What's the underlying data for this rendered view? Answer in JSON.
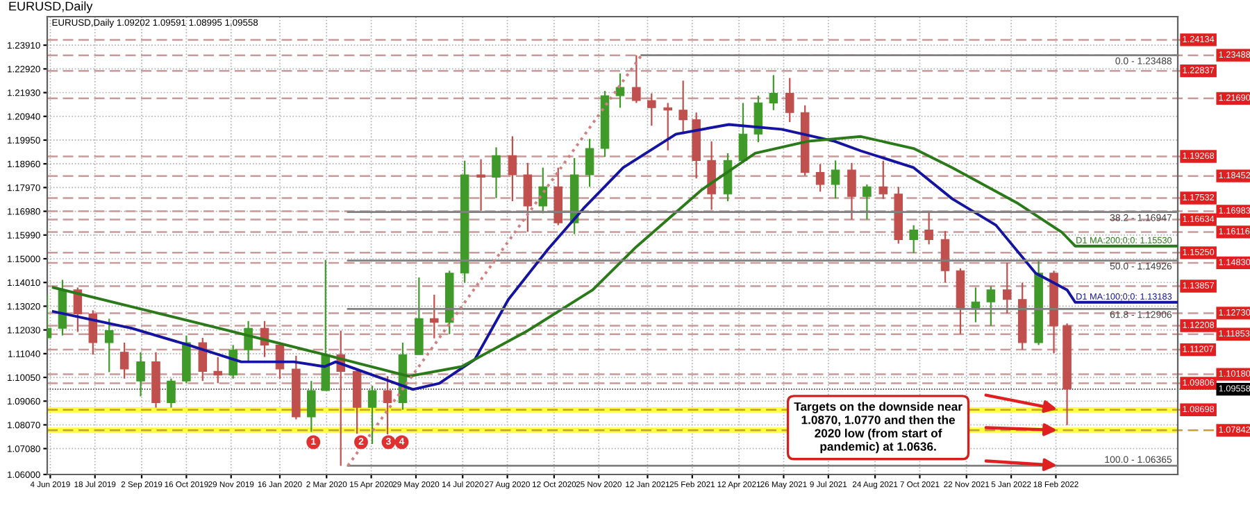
{
  "chart_data": {
    "type": "candlestick",
    "title": "EURUSD,Daily",
    "subtitle": "EURUSD,Daily 1.09202 1.09591 1.08995 1.09558",
    "x": [
      "2019-06-01",
      "2019-06-16",
      "2019-07-01",
      "2019-07-16",
      "2019-08-01",
      "2019-08-16",
      "2019-09-01",
      "2019-09-16",
      "2019-10-01",
      "2019-10-16",
      "2019-11-01",
      "2019-11-16",
      "2019-12-01",
      "2019-12-16",
      "2020-01-01",
      "2020-01-16",
      "2020-02-01",
      "2020-02-16",
      "2020-03-01",
      "2020-03-16",
      "2020-04-01",
      "2020-04-16",
      "2020-05-01",
      "2020-05-16",
      "2020-06-01",
      "2020-06-16",
      "2020-07-01",
      "2020-07-16",
      "2020-08-01",
      "2020-08-16",
      "2020-09-01",
      "2020-09-16",
      "2020-10-01",
      "2020-10-16",
      "2020-11-01",
      "2020-11-16",
      "2020-12-01",
      "2020-12-16",
      "2021-01-01",
      "2021-01-16",
      "2021-02-01",
      "2021-02-16",
      "2021-03-01",
      "2021-03-16",
      "2021-04-01",
      "2021-04-16",
      "2021-05-01",
      "2021-05-16",
      "2021-06-01",
      "2021-06-16",
      "2021-07-01",
      "2021-07-16",
      "2021-08-01",
      "2021-08-16",
      "2021-09-01",
      "2021-09-16",
      "2021-10-01",
      "2021-10-16",
      "2021-11-01",
      "2021-11-16",
      "2021-12-01",
      "2021-12-16",
      "2022-01-01",
      "2022-01-16",
      "2022-02-01",
      "2022-02-16",
      "2022-03-01"
    ],
    "ohlc": [
      [
        1.117,
        1.1348,
        1.116,
        1.121
      ],
      [
        1.121,
        1.1412,
        1.118,
        1.137
      ],
      [
        1.137,
        1.138,
        1.1195,
        1.127
      ],
      [
        1.127,
        1.1285,
        1.11,
        1.115
      ],
      [
        1.115,
        1.125,
        1.1027,
        1.12
      ],
      [
        1.111,
        1.115,
        1.1,
        1.104
      ],
      [
        1.099,
        1.111,
        1.0926,
        1.107
      ],
      [
        1.107,
        1.111,
        1.0879,
        1.09
      ],
      [
        1.09,
        1.1,
        1.0879,
        1.099
      ],
      [
        1.099,
        1.1179,
        1.098,
        1.115
      ],
      [
        1.115,
        1.117,
        1.099,
        1.103
      ],
      [
        1.103,
        1.109,
        1.0981,
        1.1015
      ],
      [
        1.1015,
        1.114,
        1.1,
        1.112
      ],
      [
        1.112,
        1.124,
        1.107,
        1.121
      ],
      [
        1.121,
        1.124,
        1.109,
        1.114
      ],
      [
        1.114,
        1.115,
        1.1,
        1.104
      ],
      [
        1.104,
        1.1095,
        1.083,
        1.084
      ],
      [
        1.084,
        1.099,
        1.0778,
        1.095
      ],
      [
        1.095,
        1.1495,
        1.095,
        1.11
      ],
      [
        1.11,
        1.12,
        1.0636,
        1.103
      ],
      [
        1.103,
        1.104,
        1.077,
        1.088
      ],
      [
        1.088,
        1.097,
        1.0727,
        1.095
      ],
      [
        1.095,
        1.101,
        1.0767,
        1.09
      ],
      [
        1.09,
        1.115,
        1.087,
        1.11
      ],
      [
        1.11,
        1.1422,
        1.11,
        1.125
      ],
      [
        1.125,
        1.135,
        1.1168,
        1.1235
      ],
      [
        1.1235,
        1.145,
        1.1185,
        1.144
      ],
      [
        1.144,
        1.1909,
        1.14,
        1.185
      ],
      [
        1.185,
        1.1915,
        1.17,
        1.184
      ],
      [
        1.184,
        1.1965,
        1.1753,
        1.193
      ],
      [
        1.193,
        1.2011,
        1.174,
        1.185
      ],
      [
        1.185,
        1.19,
        1.1612,
        1.172
      ],
      [
        1.172,
        1.188,
        1.169,
        1.18
      ],
      [
        1.18,
        1.188,
        1.164,
        1.165
      ],
      [
        1.165,
        1.192,
        1.1603,
        1.185
      ],
      [
        1.185,
        1.2,
        1.18,
        1.196
      ],
      [
        1.196,
        1.22,
        1.1925,
        1.218
      ],
      [
        1.218,
        1.2273,
        1.213,
        1.2215
      ],
      [
        1.2215,
        1.2349,
        1.215,
        1.216
      ],
      [
        1.216,
        1.219,
        1.2055,
        1.213
      ],
      [
        1.213,
        1.215,
        1.1952,
        1.212
      ],
      [
        1.212,
        1.2243,
        1.202,
        1.208
      ],
      [
        1.208,
        1.211,
        1.1835,
        1.191
      ],
      [
        1.191,
        1.199,
        1.1704,
        1.177
      ],
      [
        1.177,
        1.194,
        1.174,
        1.191
      ],
      [
        1.191,
        1.215,
        1.19,
        1.202
      ],
      [
        1.202,
        1.218,
        1.1986,
        1.215
      ],
      [
        1.215,
        1.2266,
        1.212,
        1.219
      ],
      [
        1.219,
        1.2254,
        1.207,
        1.211
      ],
      [
        1.211,
        1.214,
        1.1847,
        1.186
      ],
      [
        1.186,
        1.1895,
        1.178,
        1.181
      ],
      [
        1.181,
        1.191,
        1.1752,
        1.187
      ],
      [
        1.187,
        1.19,
        1.1664,
        1.176
      ],
      [
        1.176,
        1.181,
        1.1664,
        1.18
      ],
      [
        1.18,
        1.1909,
        1.175,
        1.177
      ],
      [
        1.177,
        1.18,
        1.1563,
        1.158
      ],
      [
        1.158,
        1.164,
        1.1524,
        1.162
      ],
      [
        1.162,
        1.1692,
        1.156,
        1.158
      ],
      [
        1.158,
        1.1616,
        1.14,
        1.145
      ],
      [
        1.145,
        1.146,
        1.1186,
        1.129
      ],
      [
        1.129,
        1.138,
        1.1235,
        1.132
      ],
      [
        1.132,
        1.1385,
        1.122,
        1.137
      ],
      [
        1.137,
        1.1483,
        1.1272,
        1.133
      ],
      [
        1.133,
        1.14,
        1.1121,
        1.115
      ],
      [
        1.115,
        1.1495,
        1.114,
        1.144
      ],
      [
        1.144,
        1.145,
        1.1106,
        1.122
      ],
      [
        1.122,
        1.123,
        1.0806,
        1.0956
      ]
    ],
    "series": [
      {
        "type": "line",
        "name": "D1 MA:100;0;0: 1.13183",
        "color": "#1414a0",
        "x": [
          "2019-06-07",
          "2019-08-23",
          "2019-10-18",
          "2019-12-09",
          "2020-01-30",
          "2020-02-29",
          "2020-03-11",
          "2020-04-13",
          "2020-05-26",
          "2020-06-21",
          "2020-07-26",
          "2020-08-28",
          "2020-10-06",
          "2020-11-10",
          "2020-12-19",
          "2021-02-09",
          "2021-04-02",
          "2021-05-24",
          "2021-07-15",
          "2021-08-10",
          "2021-10-01",
          "2021-11-08",
          "2021-12-21",
          "2022-01-29",
          "2022-03-01",
          "2022-03-09",
          "2022-06-18"
        ],
        "values": [
          1.128,
          1.121,
          1.114,
          1.107,
          1.107,
          1.105,
          1.107,
          1.102,
          1.0955,
          1.098,
          1.108,
          1.133,
          1.154,
          1.171,
          1.188,
          1.202,
          1.206,
          1.204,
          1.199,
          1.195,
          1.188,
          1.175,
          1.164,
          1.144,
          1.137,
          1.13183,
          1.13183
        ]
      },
      {
        "type": "line",
        "name": "D1 MA:200;0;0: 1.15530",
        "color": "#2a7a1a",
        "x": [
          "2019-06-07",
          "2019-08-23",
          "2019-11-17",
          "2020-02-29",
          "2020-05-22",
          "2020-07-13",
          "2020-09-16",
          "2020-11-19",
          "2021-01-01",
          "2021-03-07",
          "2021-04-28",
          "2021-06-19",
          "2021-08-10",
          "2021-10-01",
          "2021-11-08",
          "2022-01-12",
          "2022-02-24",
          "2022-03-09",
          "2022-06-18"
        ],
        "values": [
          1.138,
          1.13,
          1.121,
          1.11,
          1.101,
          1.105,
          1.12,
          1.137,
          1.155,
          1.179,
          1.194,
          1.199,
          1.201,
          1.196,
          1.188,
          1.173,
          1.161,
          1.1553,
          1.1553
        ]
      },
      {
        "type": "line",
        "name": "0.0 - 1.23488",
        "color": "#808080",
        "x": [
          "2021-01-06",
          "2022-06-18"
        ],
        "values": [
          1.23488,
          1.23488
        ]
      },
      {
        "type": "line",
        "name": "38.2 - 1.16947",
        "color": "#808080",
        "x": [
          "2020-03-23",
          "2022-06-18"
        ],
        "values": [
          1.16947,
          1.16947
        ]
      },
      {
        "type": "line",
        "name": "50.0 - 1.14926",
        "color": "#808080",
        "x": [
          "2020-03-23",
          "2022-06-18"
        ],
        "values": [
          1.14926,
          1.14926
        ]
      },
      {
        "type": "line",
        "name": "61.8 - 1.12906",
        "color": "#808080",
        "x": [
          "2020-03-23",
          "2022-06-18"
        ],
        "values": [
          1.12906,
          1.12906
        ]
      },
      {
        "type": "line",
        "name": "100.0 - 1.06365",
        "color": "#808080",
        "x": [
          "2020-03-23",
          "2022-06-18"
        ],
        "values": [
          1.06365,
          1.06365
        ]
      },
      {
        "type": "line",
        "color": "#d08080",
        "line_style": "dotted",
        "x": [
          "2020-03-23",
          "2021-01-06"
        ],
        "values": [
          1.06365,
          1.23488
        ]
      }
    ],
    "xlim": [
      "2019-06-01",
      "2022-06-18"
    ],
    "xticks": [
      {
        "value": "2019-06-04",
        "label": "4 Jun 2019"
      },
      {
        "value": "2019-07-18",
        "label": "18 Jul 2019"
      },
      {
        "value": "2019-09-02",
        "label": "2 Sep 2019"
      },
      {
        "value": "2019-10-16",
        "label": "16 Oct 2019"
      },
      {
        "value": "2019-11-29",
        "label": "29 Nov 2019"
      },
      {
        "value": "2020-01-16",
        "label": "16 Jan 2020"
      },
      {
        "value": "2020-03-02",
        "label": "2 Mar 2020"
      },
      {
        "value": "2020-04-15",
        "label": "15 Apr 2020"
      },
      {
        "value": "2020-05-29",
        "label": "29 May 2020"
      },
      {
        "value": "2020-07-14",
        "label": "14 Jul 2020"
      },
      {
        "value": "2020-08-27",
        "label": "27 Aug 2020"
      },
      {
        "value": "2020-10-12",
        "label": "12 Oct 2020"
      },
      {
        "value": "2020-11-25",
        "label": "25 Nov 2020"
      },
      {
        "value": "2021-01-12",
        "label": "12 Jan 2021"
      },
      {
        "value": "2021-02-25",
        "label": "25 Feb 2021"
      },
      {
        "value": "2021-04-12",
        "label": "12 Apr 2021"
      },
      {
        "value": "2021-05-26",
        "label": "26 May 2021"
      },
      {
        "value": "2021-07-09",
        "label": "9 Jul 2021"
      },
      {
        "value": "2021-08-24",
        "label": "24 Aug 2021"
      },
      {
        "value": "2021-10-07",
        "label": "7 Oct 2021"
      },
      {
        "value": "2021-11-22",
        "label": "22 Nov 2021"
      },
      {
        "value": "2022-01-05",
        "label": "5 Jan 2022"
      },
      {
        "value": "2022-02-18",
        "label": "18 Feb 2022"
      }
    ],
    "ylim": [
      1.06,
      1.251
    ],
    "yticks": [
      {
        "value": 1.06,
        "label": "1.06000"
      },
      {
        "value": 1.0708,
        "label": "1.07080"
      },
      {
        "value": 1.0807,
        "label": "1.08070"
      },
      {
        "value": 1.0906,
        "label": "1.09060"
      },
      {
        "value": 1.1005,
        "label": "1.10050"
      },
      {
        "value": 1.1104,
        "label": "1.11040"
      },
      {
        "value": 1.1203,
        "label": "1.12030"
      },
      {
        "value": 1.1302,
        "label": "1.13020"
      },
      {
        "value": 1.1401,
        "label": "1.14010"
      },
      {
        "value": 1.15,
        "label": "1.15000"
      },
      {
        "value": 1.1599,
        "label": "1.15990"
      },
      {
        "value": 1.1698,
        "label": "1.16980"
      },
      {
        "value": 1.1797,
        "label": "1.17970"
      },
      {
        "value": 1.1896,
        "label": "1.18960"
      },
      {
        "value": 1.1995,
        "label": "1.19950"
      },
      {
        "value": 1.2094,
        "label": "1.20940"
      },
      {
        "value": 1.2193,
        "label": "1.21930"
      },
      {
        "value": 1.2292,
        "label": "1.22920"
      },
      {
        "value": 1.2391,
        "label": "1.23910"
      }
    ],
    "grid": true,
    "bands": [
      {
        "axis": "y",
        "from": 1.0858,
        "to": 1.0881,
        "color": "#ffff40"
      },
      {
        "axis": "y",
        "from": 1.0773,
        "to": 1.0796,
        "color": "#ffff40"
      }
    ],
    "ref_lines": [
      {
        "axis": "y",
        "value": 1.24134,
        "label": "1.24134",
        "color": "#c89a9a",
        "line_style": "dashed"
      },
      {
        "axis": "y",
        "value": 1.23488,
        "label": "1.23488",
        "color": "#c89a9a",
        "line_style": "dashed"
      },
      {
        "axis": "y",
        "value": 1.22837,
        "label": "1.22837",
        "color": "#c89a9a",
        "line_style": "dashed"
      },
      {
        "axis": "y",
        "value": 1.2169,
        "label": "1.21690",
        "color": "#c89a9a",
        "line_style": "dashed"
      },
      {
        "axis": "y",
        "value": 1.19268,
        "label": "1.19268",
        "color": "#c89a9a",
        "line_style": "dashed"
      },
      {
        "axis": "y",
        "value": 1.18452,
        "label": "1.18452",
        "color": "#c89a9a",
        "line_style": "dashed"
      },
      {
        "axis": "y",
        "value": 1.17532,
        "label": "1.17532",
        "color": "#c89a9a",
        "line_style": "dashed"
      },
      {
        "axis": "y",
        "value": 1.16983,
        "label": "1.16983",
        "color": "#c89a9a",
        "line_style": "dashed"
      },
      {
        "axis": "y",
        "value": 1.16634,
        "label": "1.16634",
        "color": "#c89a9a",
        "line_style": "dashed"
      },
      {
        "axis": "y",
        "value": 1.16116,
        "label": "1.16116",
        "color": "#c89a9a",
        "line_style": "dashed"
      },
      {
        "axis": "y",
        "value": 1.1525,
        "label": "1.15250",
        "color": "#c89a9a",
        "line_style": "dashed"
      },
      {
        "axis": "y",
        "value": 1.1483,
        "label": "1.14830",
        "color": "#c89a9a",
        "line_style": "dashed"
      },
      {
        "axis": "y",
        "value": 1.13857,
        "label": "1.13857",
        "color": "#c89a9a",
        "line_style": "dashed"
      },
      {
        "axis": "y",
        "value": 1.1273,
        "label": "1.12730",
        "color": "#c89a9a",
        "line_style": "dashed"
      },
      {
        "axis": "y",
        "value": 1.12208,
        "label": "1.12208",
        "color": "#c89a9a",
        "line_style": "dashed"
      },
      {
        "axis": "y",
        "value": 1.11853,
        "label": "1.11853",
        "color": "#c89a9a",
        "line_style": "dashed"
      },
      {
        "axis": "y",
        "value": 1.11207,
        "label": "1.11207",
        "color": "#c89a9a",
        "line_style": "dashed"
      },
      {
        "axis": "y",
        "value": 1.1018,
        "label": "1.10180",
        "color": "#c89a9a",
        "line_style": "dashed"
      },
      {
        "axis": "y",
        "value": 1.09806,
        "label": "1.09806",
        "color": "#c89a9a",
        "line_style": "dashed"
      },
      {
        "axis": "y",
        "value": 1.09558,
        "label": "1.09558",
        "color": "#000000",
        "line_style": "dotted"
      },
      {
        "axis": "y",
        "value": 1.08698,
        "label": "1.08698",
        "color": "#c8a030",
        "line_style": "dashed"
      },
      {
        "axis": "y",
        "value": 1.07842,
        "label": "1.07842",
        "color": "#c8a030",
        "line_style": "dashed"
      }
    ],
    "annotations": [
      "Targets on the downside near\n1.0870, 1.0770 and then the\n2020 low (from start of\npandemic) at 1.0636.",
      {
        "text": "1",
        "x": "2020-02-18",
        "y": 1.0735
      },
      {
        "text": "2",
        "x": "2020-04-05",
        "y": 1.0735
      },
      {
        "text": "3",
        "x": "2020-05-02",
        "y": 1.0735
      },
      {
        "text": "4",
        "x": "2020-05-15",
        "y": 1.0735
      }
    ]
  }
}
